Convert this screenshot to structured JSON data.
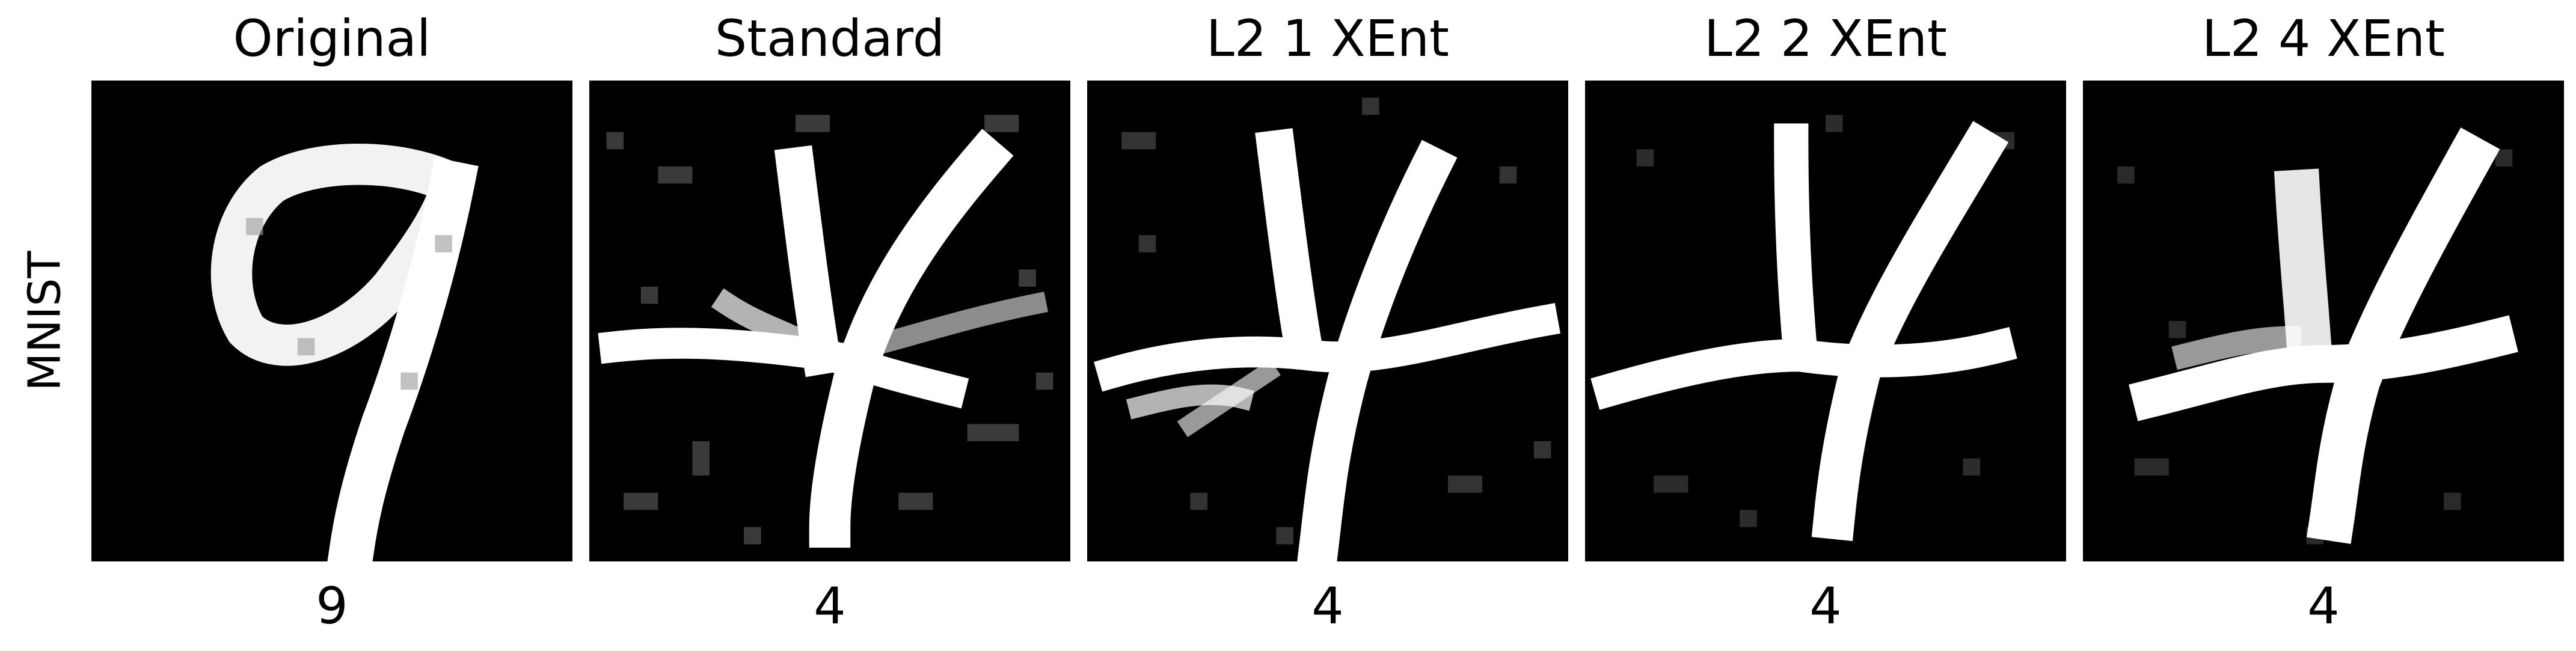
{
  "row_label": "MNIST",
  "panels": [
    {
      "title": "Original",
      "prediction": "9",
      "digit_shown": "9"
    },
    {
      "title": "Standard",
      "prediction": "4",
      "digit_shown": "4"
    },
    {
      "title": "L2 1 XEnt",
      "prediction": "4",
      "digit_shown": "4"
    },
    {
      "title": "L2 2 XEnt",
      "prediction": "4",
      "digit_shown": "4"
    },
    {
      "title": "L2 4 XEnt",
      "prediction": "4",
      "digit_shown": "4"
    }
  ],
  "colors": {
    "background": "#ffffff",
    "image_background": "#000000",
    "stroke": "#ffffff"
  }
}
